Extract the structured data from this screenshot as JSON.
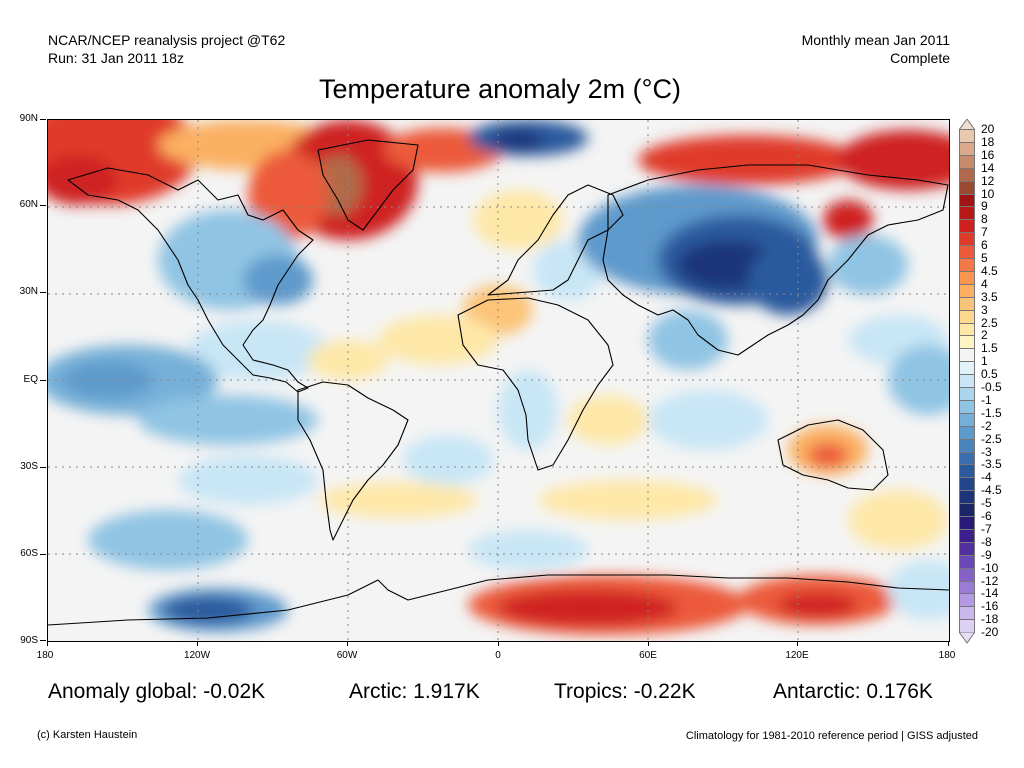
{
  "header": {
    "left_line1": "NCAR/NCEP reanalysis project @T62",
    "left_line2": "Run: 31 Jan 2011 18z",
    "right_line1": "Monthly mean Jan 2011",
    "right_line2": "Complete"
  },
  "title": "Temperature anomaly 2m (°C)",
  "axes": {
    "y_labels": [
      "90N",
      "60N",
      "30N",
      "EQ",
      "30S",
      "60S",
      "90S"
    ],
    "x_labels": [
      "180",
      "120W",
      "60W",
      "0",
      "60E",
      "120E",
      "180"
    ]
  },
  "colorbar": {
    "labels": [
      "20",
      "18",
      "16",
      "14",
      "12",
      "10",
      "9",
      "8",
      "7",
      "6",
      "5",
      "4.5",
      "4",
      "3.5",
      "3",
      "2.5",
      "2",
      "1.5",
      "1",
      "0.5",
      "-0.5",
      "-1",
      "-1.5",
      "-2",
      "-2.5",
      "-3",
      "-3.5",
      "-4",
      "-4.5",
      "-5",
      "-6",
      "-7",
      "-8",
      "-9",
      "-10",
      "-12",
      "-14",
      "-16",
      "-18",
      "-20"
    ],
    "colors": [
      "#e9c8b0",
      "#d9a98a",
      "#c78a6a",
      "#b06a4a",
      "#9a4a30",
      "#a01414",
      "#b81818",
      "#cf2020",
      "#e03a2a",
      "#ec5a3a",
      "#f37a46",
      "#f89650",
      "#fbb062",
      "#fcc478",
      "#fdd88e",
      "#fee8a8",
      "#fff4c4",
      "#f4f4f4",
      "#e2f2fb",
      "#c8e6f6",
      "#acd6ee",
      "#90c4e4",
      "#76b0d8",
      "#5f9acc",
      "#4a84be",
      "#3a6eae",
      "#2c5a9e",
      "#22468c",
      "#1c357a",
      "#1a2668",
      "#2a1a78",
      "#3e1e8c",
      "#5230a0",
      "#6a48b6",
      "#8462c8",
      "#9a7cd6",
      "#b49ae2",
      "#cab8ec",
      "#dcd0f4"
    ]
  },
  "stats": {
    "global": "Anomaly global: -0.02K",
    "arctic": "Arctic: 1.917K",
    "tropics": "Tropics: -0.22K",
    "antarctic": "Antarctic: 0.176K"
  },
  "footer": {
    "left": "(c) Karsten Haustein",
    "right": "Climatology for 1981-2010 reference period | GISS adjusted"
  }
}
